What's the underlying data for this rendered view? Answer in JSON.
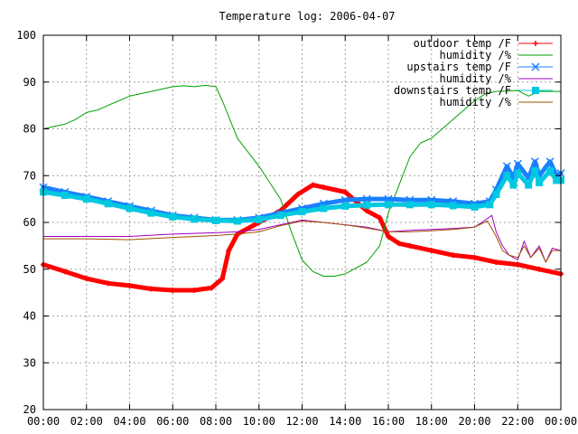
{
  "chart_data": {
    "type": "line",
    "title": "Temperature log: 2006-04-07",
    "xlabel": "",
    "ylabel": "",
    "ylim": [
      20,
      100
    ],
    "xlim": [
      0,
      24
    ],
    "grid": true,
    "legend_position": "top-right",
    "x_ticks": [
      "00:00",
      "02:00",
      "04:00",
      "06:00",
      "08:00",
      "10:00",
      "12:00",
      "14:00",
      "16:00",
      "18:00",
      "20:00",
      "22:00",
      "00:00"
    ],
    "y_ticks": [
      20,
      30,
      40,
      50,
      60,
      70,
      80,
      90,
      100
    ],
    "series": [
      {
        "name": "outdoor temp /F",
        "color": "#ff0000",
        "marker": "plus",
        "x": [
          0,
          1,
          2,
          3,
          4,
          5,
          6,
          7,
          7.8,
          8.3,
          8.6,
          9,
          10,
          11,
          11.8,
          12.5,
          13,
          14,
          15,
          15.6,
          16,
          16.5,
          17,
          18,
          19,
          20,
          21,
          22,
          23,
          24
        ],
        "y": [
          51,
          49.5,
          48,
          47,
          46.5,
          45.8,
          45.5,
          45.5,
          46,
          48,
          54,
          57.5,
          60,
          62.5,
          66,
          68,
          67.5,
          66.5,
          62.5,
          61,
          57,
          55.5,
          55,
          54,
          53,
          52.5,
          51.5,
          51,
          50,
          49
        ]
      },
      {
        "name": "humidity /%",
        "color": "#00a000",
        "marker": "none",
        "x": [
          0,
          0.5,
          1,
          1.5,
          2,
          2.5,
          3,
          4,
          5,
          6,
          6.5,
          7,
          7.5,
          8,
          8.3,
          9,
          10,
          11,
          11.5,
          12,
          12.5,
          13,
          13.5,
          14,
          15,
          15.6,
          16,
          16.5,
          17,
          17.5,
          18,
          18.5,
          19,
          19.5,
          20,
          20.5,
          21,
          22,
          22.5,
          23,
          23.5,
          24
        ],
        "y": [
          80,
          80.5,
          81,
          82,
          83.5,
          84,
          85,
          87,
          88,
          89,
          89.2,
          89,
          89.3,
          89,
          86,
          78,
          72,
          65,
          58,
          52,
          49.5,
          48.5,
          48.5,
          49,
          51.5,
          55,
          62,
          68,
          74,
          77,
          78,
          80,
          82,
          84,
          86,
          87.5,
          88,
          88.2,
          87,
          88,
          88,
          88
        ]
      },
      {
        "name": "upstairs temp /F",
        "color": "#1a80ff",
        "marker": "x",
        "x": [
          0,
          1,
          2,
          3,
          4,
          5,
          6,
          7,
          8,
          9,
          10,
          11,
          12,
          13,
          14,
          15,
          16,
          17,
          18,
          19,
          20,
          20.7,
          21,
          21.5,
          21.8,
          22,
          22.5,
          22.8,
          23,
          23.5,
          23.8,
          24
        ],
        "y": [
          67.5,
          66.5,
          65.5,
          64.5,
          63.5,
          62.5,
          61.5,
          61,
          60.5,
          60.5,
          61,
          62,
          63,
          64,
          64.8,
          65,
          65,
          64.8,
          64.8,
          64.5,
          64,
          64.5,
          67,
          72,
          69.5,
          72.5,
          69.5,
          73,
          70,
          73,
          70,
          70.5
        ]
      },
      {
        "name": "humidity /%",
        "color": "#a000c0",
        "marker": "none",
        "x": [
          0,
          2,
          4,
          6,
          8,
          9,
          10,
          11,
          12,
          13,
          14,
          15,
          16,
          17,
          18,
          19,
          20,
          20.5,
          20.8,
          21,
          21.3,
          21.6,
          22,
          22.3,
          22.6,
          23,
          23.3,
          23.6,
          24
        ],
        "y": [
          57,
          57,
          57,
          57.5,
          57.8,
          58,
          58.5,
          59.5,
          60.5,
          60,
          59.5,
          59,
          58,
          58.3,
          58.5,
          58.7,
          59,
          60.5,
          61.5,
          58,
          55,
          53,
          52,
          56,
          52.5,
          55,
          51.5,
          54.5,
          54
        ]
      },
      {
        "name": "downstairs temp /F",
        "color": "#00c8e0",
        "marker": "square",
        "x": [
          0,
          1,
          2,
          3,
          4,
          5,
          6,
          7,
          8,
          9,
          10,
          11,
          12,
          13,
          14,
          15,
          16,
          17,
          18,
          19,
          20,
          20.7,
          21,
          21.5,
          21.8,
          22,
          22.5,
          22.8,
          23,
          23.5,
          23.8,
          24
        ],
        "y": [
          66.5,
          65.8,
          65,
          64,
          63,
          62,
          61.2,
          60.7,
          60.4,
          60.3,
          60.6,
          61.5,
          62.3,
          63,
          63.5,
          63.7,
          63.8,
          63.8,
          63.8,
          63.6,
          63.3,
          63.8,
          66,
          70,
          68,
          70.5,
          68,
          71,
          68.5,
          71,
          69,
          69
        ]
      },
      {
        "name": "humidity /%",
        "color": "#a05000",
        "marker": "none",
        "x": [
          0,
          2,
          4,
          6,
          8,
          9,
          10,
          11,
          12,
          13,
          14,
          15,
          16,
          17,
          18,
          19,
          20,
          20.6,
          21,
          21.3,
          21.6,
          22,
          22.3,
          22.6,
          23,
          23.3,
          23.6,
          24
        ],
        "y": [
          56.5,
          56.5,
          56.3,
          56.8,
          57.2,
          57.5,
          58,
          59.3,
          60.3,
          60,
          59.5,
          58.8,
          58,
          58,
          58.2,
          58.5,
          59,
          60.3,
          57,
          54,
          53,
          52.5,
          55,
          52.5,
          54.5,
          51.5,
          54,
          54
        ]
      }
    ]
  }
}
